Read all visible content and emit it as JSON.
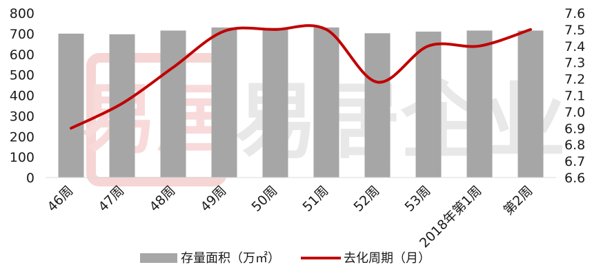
{
  "chart_data": {
    "type": "bar",
    "categories": [
      "46周",
      "47周",
      "48周",
      "49周",
      "50周",
      "51周",
      "52周",
      "53周",
      "2018年第1周",
      "第2周"
    ],
    "series": [
      {
        "name": "存量面积（万㎡）",
        "type": "bar",
        "axis": "left",
        "color": "#a6a6a6",
        "values": [
          700,
          697,
          715,
          730,
          728,
          730,
          702,
          710,
          715,
          715
        ]
      },
      {
        "name": "去化周期（月）",
        "type": "line",
        "axis": "right",
        "color": "#c00000",
        "values": [
          6.9,
          7.05,
          7.27,
          7.49,
          7.5,
          7.5,
          7.18,
          7.4,
          7.4,
          7.5
        ]
      }
    ],
    "y_left": {
      "min": 0,
      "max": 800,
      "ticks": [
        "0",
        "100",
        "200",
        "300",
        "400",
        "500",
        "600",
        "700",
        "800"
      ]
    },
    "y_right": {
      "min": 6.6,
      "max": 7.6,
      "ticks": [
        "6.6",
        "6.7",
        "6.8",
        "6.9",
        "7.0",
        "7.1",
        "7.2",
        "7.3",
        "7.4",
        "7.5",
        "7.6"
      ]
    },
    "grid": false,
    "legend": "bottom"
  },
  "watermark": {
    "text": "易居企业",
    "seal": "易居"
  }
}
